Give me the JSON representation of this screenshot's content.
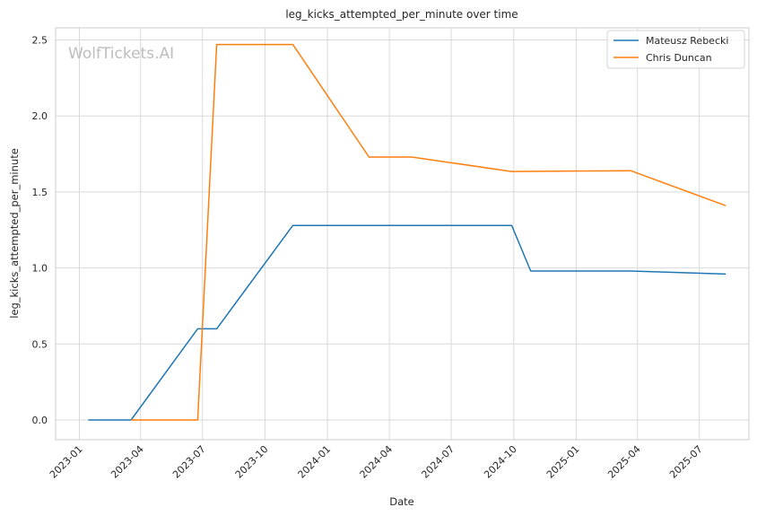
{
  "chart_data": {
    "type": "line",
    "title": "leg_kicks_attempted_per_minute over time",
    "xlabel": "Date",
    "ylabel": "leg_kicks_attempted_per_minute",
    "watermark": "WolfTickets.AI",
    "xlim": [
      "2022-11-27",
      "2025-09-12"
    ],
    "ylim": [
      -0.13,
      2.58
    ],
    "x_ticks": [
      {
        "date": "2023-01-01",
        "label": "2023-01"
      },
      {
        "date": "2023-04-01",
        "label": "2023-04"
      },
      {
        "date": "2023-07-01",
        "label": "2023-07"
      },
      {
        "date": "2023-10-01",
        "label": "2023-10"
      },
      {
        "date": "2024-01-01",
        "label": "2024-01"
      },
      {
        "date": "2024-04-01",
        "label": "2024-04"
      },
      {
        "date": "2024-07-01",
        "label": "2024-07"
      },
      {
        "date": "2024-10-01",
        "label": "2024-10"
      },
      {
        "date": "2025-01-01",
        "label": "2025-01"
      },
      {
        "date": "2025-04-01",
        "label": "2025-04"
      },
      {
        "date": "2025-07-01",
        "label": "2025-07"
      }
    ],
    "y_ticks": [
      {
        "value": 0.0,
        "label": "0.0"
      },
      {
        "value": 0.5,
        "label": "0.5"
      },
      {
        "value": 1.0,
        "label": "1.0"
      },
      {
        "value": 1.5,
        "label": "1.5"
      },
      {
        "value": 2.0,
        "label": "2.0"
      },
      {
        "value": 2.5,
        "label": "2.5"
      }
    ],
    "grid": true,
    "legend_position": "top-right",
    "series": [
      {
        "name": "Mateusz Rebecki",
        "color": "#1f77b4",
        "points": [
          {
            "x": "2023-01-14",
            "y": 0.0
          },
          {
            "x": "2023-03-18",
            "y": 0.0
          },
          {
            "x": "2023-06-24",
            "y": 0.6
          },
          {
            "x": "2023-07-22",
            "y": 0.6
          },
          {
            "x": "2023-11-11",
            "y": 1.28
          },
          {
            "x": "2024-09-28",
            "y": 1.28
          },
          {
            "x": "2024-10-26",
            "y": 0.98
          },
          {
            "x": "2025-03-22",
            "y": 0.98
          },
          {
            "x": "2025-08-09",
            "y": 0.96
          }
        ]
      },
      {
        "name": "Chris Duncan",
        "color": "#ff7f0e",
        "points": [
          {
            "x": "2023-03-18",
            "y": 0.0
          },
          {
            "x": "2023-06-24",
            "y": 0.0
          },
          {
            "x": "2023-07-22",
            "y": 2.47
          },
          {
            "x": "2023-11-11",
            "y": 2.47
          },
          {
            "x": "2024-03-02",
            "y": 1.73
          },
          {
            "x": "2024-05-04",
            "y": 1.73
          },
          {
            "x": "2024-09-28",
            "y": 1.635
          },
          {
            "x": "2025-03-22",
            "y": 1.64
          },
          {
            "x": "2025-08-09",
            "y": 1.41
          }
        ]
      }
    ]
  }
}
